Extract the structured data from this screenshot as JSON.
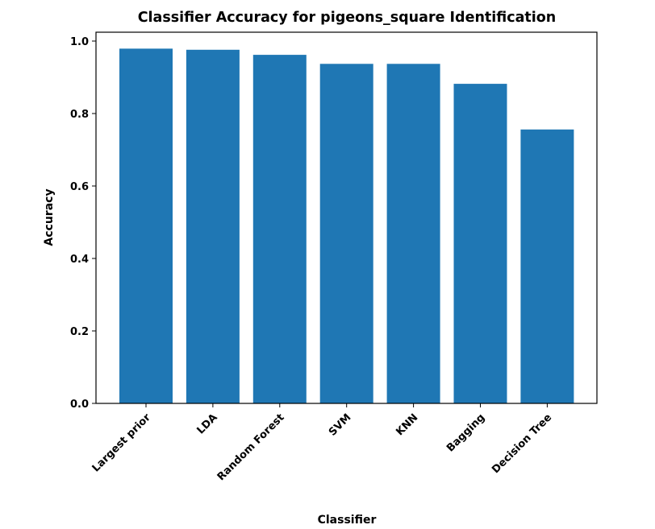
{
  "chart_data": {
    "type": "bar",
    "title": "Classifier Accuracy for pigeons_square Identification",
    "xlabel": "Classifier",
    "ylabel": "Accuracy",
    "categories": [
      "Largest prior",
      "LDA",
      "Random Forest",
      "SVM",
      "KNN",
      "Bagging",
      "Decision Tree"
    ],
    "values": [
      0.979,
      0.976,
      0.962,
      0.937,
      0.937,
      0.882,
      0.756
    ],
    "ylim": [
      0,
      1.0
    ],
    "yticks": [
      0.0,
      0.2,
      0.4,
      0.6,
      0.8,
      1.0
    ],
    "ytick_labels": [
      "0.0",
      "0.2",
      "0.4",
      "0.6",
      "0.8",
      "1.0"
    ],
    "bar_color": "#1f77b4",
    "grid": false,
    "legend": "none"
  }
}
